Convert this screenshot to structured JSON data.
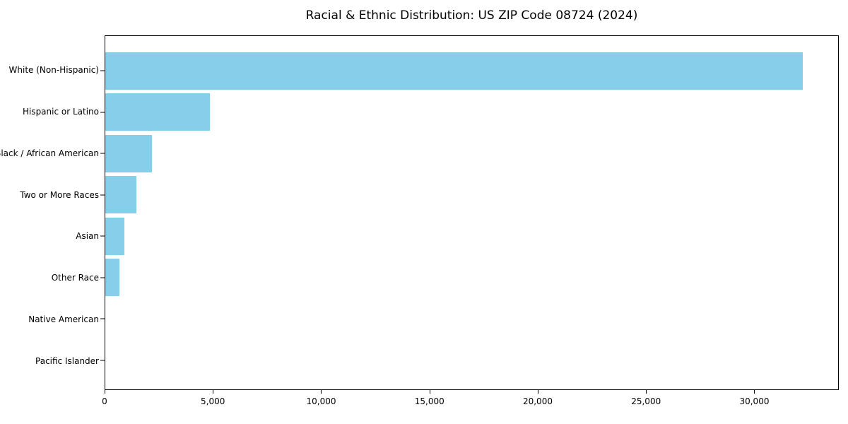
{
  "figure": {
    "background": "#ffffff"
  },
  "chart_data": {
    "type": "bar",
    "orientation": "horizontal",
    "title": "Racial & Ethnic Distribution: US ZIP Code 08724 (2024)",
    "categories": [
      "White (Non-Hispanic)",
      "Hispanic or Latino",
      "Black / African American",
      "Two or More Races",
      "Asian",
      "Other Race",
      "Native American",
      "Pacific Islander"
    ],
    "values": [
      32250,
      4840,
      2160,
      1450,
      890,
      660,
      0,
      0
    ],
    "xlabel": "",
    "ylabel": "",
    "xlim": [
      0,
      33900
    ],
    "x_ticks": [
      0,
      5000,
      10000,
      15000,
      20000,
      25000,
      30000
    ],
    "x_tick_labels": [
      "0",
      "5,000",
      "10,000",
      "15,000",
      "20,000",
      "25,000",
      "30,000"
    ],
    "bar_color": "#87CEEB",
    "axis_color": "#000000",
    "text_color": "#000000",
    "grid": false,
    "legend": "none"
  }
}
